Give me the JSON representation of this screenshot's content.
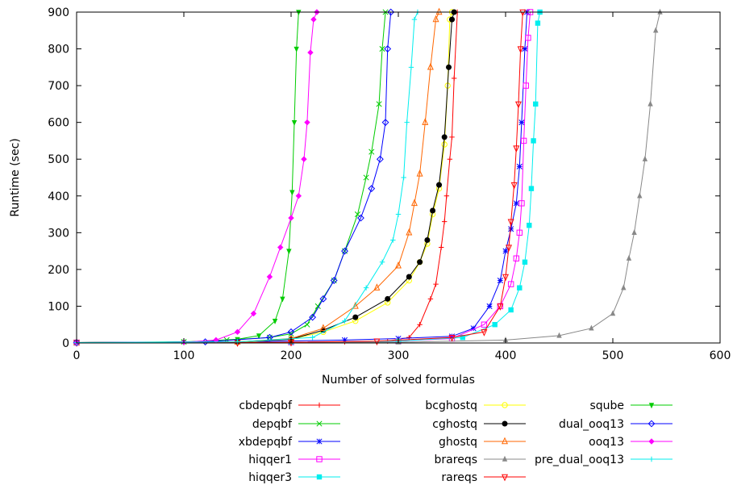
{
  "chart_data": {
    "type": "line",
    "title": "",
    "xlabel": "Number of solved formulas",
    "ylabel": "Runtime (sec)",
    "xlim": [
      0,
      600
    ],
    "ylim": [
      0,
      900
    ],
    "xticks": [
      "0",
      "100",
      "200",
      "300",
      "400",
      "500",
      "600"
    ],
    "yticks": [
      "0",
      "100",
      "200",
      "300",
      "400",
      "500",
      "600",
      "700",
      "800",
      "900"
    ],
    "grid": false,
    "legend_placement": "bottom",
    "series": [
      {
        "name": "cbdepqbf",
        "color": "#ff0000",
        "marker": "plus",
        "points": [
          [
            0,
            1
          ],
          [
            100,
            1
          ],
          [
            200,
            2
          ],
          [
            250,
            3
          ],
          [
            290,
            5
          ],
          [
            310,
            15
          ],
          [
            320,
            50
          ],
          [
            330,
            120
          ],
          [
            335,
            160
          ],
          [
            340,
            260
          ],
          [
            343,
            330
          ],
          [
            345,
            400
          ],
          [
            348,
            500
          ],
          [
            350,
            560
          ],
          [
            352,
            720
          ],
          [
            355,
            900
          ],
          [
            600,
            900
          ]
        ]
      },
      {
        "name": "depqbf",
        "color": "#00cc00",
        "marker": "cross",
        "points": [
          [
            0,
            1
          ],
          [
            100,
            3
          ],
          [
            140,
            8
          ],
          [
            180,
            15
          ],
          [
            200,
            25
          ],
          [
            215,
            50
          ],
          [
            225,
            100
          ],
          [
            240,
            170
          ],
          [
            250,
            250
          ],
          [
            262,
            350
          ],
          [
            270,
            450
          ],
          [
            275,
            520
          ],
          [
            282,
            650
          ],
          [
            285,
            800
          ],
          [
            288,
            900
          ],
          [
            600,
            900
          ]
        ]
      },
      {
        "name": "xbdepqbf",
        "color": "#0000ff",
        "marker": "star",
        "points": [
          [
            0,
            1
          ],
          [
            150,
            3
          ],
          [
            250,
            8
          ],
          [
            300,
            12
          ],
          [
            350,
            18
          ],
          [
            370,
            40
          ],
          [
            385,
            100
          ],
          [
            395,
            170
          ],
          [
            400,
            250
          ],
          [
            405,
            310
          ],
          [
            410,
            380
          ],
          [
            413,
            480
          ],
          [
            415,
            600
          ],
          [
            418,
            800
          ],
          [
            420,
            900
          ],
          [
            600,
            900
          ]
        ]
      },
      {
        "name": "hiqqer1",
        "color": "#ff00ff",
        "marker": "square",
        "points": [
          [
            0,
            1
          ],
          [
            200,
            2
          ],
          [
            300,
            5
          ],
          [
            350,
            12
          ],
          [
            380,
            50
          ],
          [
            395,
            100
          ],
          [
            405,
            160
          ],
          [
            410,
            230
          ],
          [
            413,
            300
          ],
          [
            415,
            380
          ],
          [
            417,
            550
          ],
          [
            419,
            700
          ],
          [
            421,
            830
          ],
          [
            423,
            900
          ],
          [
            600,
            900
          ]
        ]
      },
      {
        "name": "hiqqer3",
        "color": "#00eeee",
        "marker": "filled-square",
        "points": [
          [
            0,
            1
          ],
          [
            200,
            2
          ],
          [
            300,
            5
          ],
          [
            360,
            15
          ],
          [
            390,
            50
          ],
          [
            405,
            90
          ],
          [
            413,
            150
          ],
          [
            418,
            220
          ],
          [
            422,
            320
          ],
          [
            424,
            420
          ],
          [
            426,
            550
          ],
          [
            428,
            650
          ],
          [
            430,
            870
          ],
          [
            432,
            900
          ],
          [
            600,
            900
          ]
        ]
      },
      {
        "name": "bcghostq",
        "color": "#ffff00",
        "marker": "circle",
        "points": [
          [
            0,
            1
          ],
          [
            150,
            2
          ],
          [
            200,
            10
          ],
          [
            230,
            30
          ],
          [
            260,
            60
          ],
          [
            290,
            110
          ],
          [
            310,
            170
          ],
          [
            320,
            220
          ],
          [
            327,
            270
          ],
          [
            332,
            350
          ],
          [
            338,
            420
          ],
          [
            343,
            540
          ],
          [
            346,
            700
          ],
          [
            348,
            880
          ],
          [
            350,
            900
          ],
          [
            600,
            900
          ]
        ]
      },
      {
        "name": "cghostq",
        "color": "#000000",
        "marker": "filled-circle",
        "points": [
          [
            0,
            1
          ],
          [
            150,
            3
          ],
          [
            200,
            10
          ],
          [
            230,
            35
          ],
          [
            260,
            70
          ],
          [
            290,
            120
          ],
          [
            310,
            180
          ],
          [
            320,
            220
          ],
          [
            327,
            280
          ],
          [
            332,
            360
          ],
          [
            338,
            430
          ],
          [
            343,
            560
          ],
          [
            347,
            750
          ],
          [
            350,
            880
          ],
          [
            352,
            900
          ],
          [
            600,
            900
          ]
        ]
      },
      {
        "name": "ghostq",
        "color": "#ff6600",
        "marker": "triangle",
        "points": [
          [
            0,
            1
          ],
          [
            150,
            3
          ],
          [
            200,
            12
          ],
          [
            230,
            40
          ],
          [
            260,
            100
          ],
          [
            280,
            150
          ],
          [
            300,
            210
          ],
          [
            310,
            300
          ],
          [
            315,
            380
          ],
          [
            320,
            460
          ],
          [
            325,
            600
          ],
          [
            330,
            750
          ],
          [
            335,
            880
          ],
          [
            338,
            900
          ],
          [
            600,
            900
          ]
        ]
      },
      {
        "name": "brareqs",
        "color": "#888888",
        "marker": "filled-triangle",
        "points": [
          [
            0,
            1
          ],
          [
            300,
            2
          ],
          [
            400,
            8
          ],
          [
            450,
            20
          ],
          [
            480,
            40
          ],
          [
            500,
            80
          ],
          [
            510,
            150
          ],
          [
            515,
            230
          ],
          [
            520,
            300
          ],
          [
            525,
            400
          ],
          [
            530,
            500
          ],
          [
            535,
            650
          ],
          [
            540,
            850
          ],
          [
            544,
            900
          ],
          [
            600,
            900
          ]
        ]
      },
      {
        "name": "rareqs",
        "color": "#ff0000",
        "marker": "inv-triangle",
        "points": [
          [
            0,
            1
          ],
          [
            150,
            1
          ],
          [
            200,
            2
          ],
          [
            280,
            5
          ],
          [
            350,
            15
          ],
          [
            380,
            30
          ],
          [
            395,
            100
          ],
          [
            400,
            180
          ],
          [
            403,
            260
          ],
          [
            405,
            330
          ],
          [
            408,
            430
          ],
          [
            410,
            530
          ],
          [
            412,
            650
          ],
          [
            414,
            800
          ],
          [
            416,
            900
          ],
          [
            600,
            900
          ]
        ]
      },
      {
        "name": "sqube",
        "color": "#00cc00",
        "marker": "filled-inv-triangle",
        "points": [
          [
            0,
            1
          ],
          [
            100,
            2
          ],
          [
            150,
            10
          ],
          [
            170,
            20
          ],
          [
            185,
            60
          ],
          [
            192,
            120
          ],
          [
            198,
            250
          ],
          [
            201,
            410
          ],
          [
            203,
            600
          ],
          [
            205,
            800
          ],
          [
            207,
            900
          ],
          [
            600,
            900
          ]
        ]
      },
      {
        "name": "dual_ooq13",
        "color": "#0000ff",
        "marker": "diamond",
        "points": [
          [
            0,
            1
          ],
          [
            120,
            3
          ],
          [
            180,
            15
          ],
          [
            200,
            30
          ],
          [
            220,
            70
          ],
          [
            230,
            120
          ],
          [
            240,
            170
          ],
          [
            250,
            250
          ],
          [
            265,
            340
          ],
          [
            275,
            420
          ],
          [
            283,
            500
          ],
          [
            288,
            600
          ],
          [
            290,
            800
          ],
          [
            293,
            900
          ],
          [
            600,
            900
          ]
        ]
      },
      {
        "name": "ooq13",
        "color": "#ff00ff",
        "marker": "filled-diamond",
        "points": [
          [
            0,
            1
          ],
          [
            100,
            2
          ],
          [
            130,
            8
          ],
          [
            150,
            30
          ],
          [
            165,
            80
          ],
          [
            180,
            180
          ],
          [
            190,
            260
          ],
          [
            200,
            340
          ],
          [
            207,
            400
          ],
          [
            212,
            500
          ],
          [
            215,
            600
          ],
          [
            218,
            790
          ],
          [
            221,
            880
          ],
          [
            224,
            900
          ],
          [
            600,
            900
          ]
        ]
      },
      {
        "name": "pre_dual_ooq13",
        "color": "#00eeee",
        "marker": "plus-thin",
        "points": [
          [
            0,
            1
          ],
          [
            150,
            3
          ],
          [
            220,
            15
          ],
          [
            250,
            60
          ],
          [
            270,
            150
          ],
          [
            285,
            220
          ],
          [
            295,
            280
          ],
          [
            300,
            350
          ],
          [
            305,
            450
          ],
          [
            308,
            600
          ],
          [
            312,
            750
          ],
          [
            315,
            880
          ],
          [
            318,
            900
          ],
          [
            600,
            900
          ]
        ]
      }
    ]
  }
}
